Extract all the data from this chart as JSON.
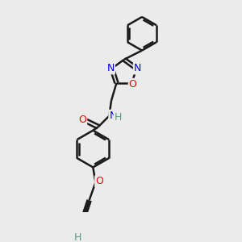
{
  "background_color": "#ebebeb",
  "bond_color": "#1a1a1a",
  "N_color": "#0000ee",
  "O_color": "#ee0000",
  "C_color": "#1a1a1a",
  "H_color": "#5a9a8a",
  "figsize": [
    3.0,
    3.0
  ],
  "dpi": 100,
  "xlim": [
    0,
    10
  ],
  "ylim": [
    0,
    10
  ]
}
